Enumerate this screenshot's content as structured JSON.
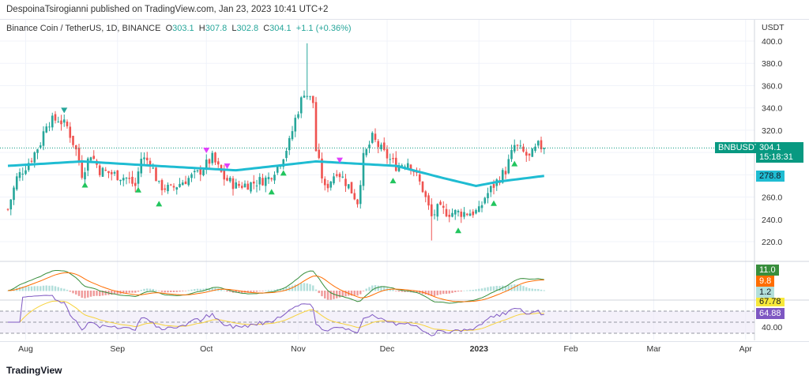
{
  "publisher": "DespoinaTsirogianni published on TradingView.com, Jan 23, 2023 10:41 UTC+2",
  "legend": {
    "symbol": "Binance Coin / TetherUS, 1D, BINANCE",
    "o_label": "O",
    "o": "303.1",
    "h_label": "H",
    "h": "307.8",
    "l_label": "L",
    "l": "302.8",
    "c_label": "C",
    "c": "304.1",
    "change": "+1.1 (+0.36%)"
  },
  "axis": {
    "currency": "USDT",
    "ticks": [
      "400.0",
      "380.0",
      "360.0",
      "340.0",
      "320.0",
      "260.0",
      "240.0",
      "220.0"
    ],
    "rsi_tick": "40.00"
  },
  "tags": {
    "symbol": "BNBUSDT",
    "price": "304.1",
    "countdown": "15:18:31",
    "ma": "278.8",
    "macd": "11.0",
    "signal": "9.8",
    "hist": "1.2",
    "rsi_ma": "67.78",
    "rsi": "64.88"
  },
  "colors": {
    "up": "#26a69a",
    "down": "#ef5350",
    "ma": "#1fbcd2",
    "macd": "#388e3c",
    "signal": "#ff6d00",
    "rsi": "#7e57c2",
    "rsi_ma": "#f7d23b"
  },
  "time_labels": [
    {
      "label": "Aug",
      "day": 6
    },
    {
      "label": "Sep",
      "day": 37
    },
    {
      "label": "Oct",
      "day": 67
    },
    {
      "label": "Nov",
      "day": 98
    },
    {
      "label": "Dec",
      "day": 128
    },
    {
      "label": "2023",
      "day": 159
    },
    {
      "label": "Feb",
      "day": 190
    },
    {
      "label": "Mar",
      "day": 218
    },
    {
      "label": "Apr",
      "day": 249
    }
  ],
  "brand": "TradingView",
  "chart_data": {
    "type": "candlestick",
    "title": "Binance Coin / TetherUS, 1D",
    "ylabel": "USDT",
    "ylim": [
      210,
      405
    ],
    "anchors": [
      [
        0,
        249
      ],
      [
        3,
        277
      ],
      [
        8,
        295
      ],
      [
        11,
        309
      ],
      [
        13,
        327
      ],
      [
        17,
        330
      ],
      [
        20,
        323
      ],
      [
        23,
        302
      ],
      [
        25,
        281
      ],
      [
        28,
        299
      ],
      [
        31,
        284
      ],
      [
        35,
        281
      ],
      [
        40,
        277
      ],
      [
        43,
        270
      ],
      [
        45,
        295
      ],
      [
        48,
        292
      ],
      [
        51,
        270
      ],
      [
        55,
        267
      ],
      [
        59,
        274
      ],
      [
        64,
        281
      ],
      [
        69,
        295
      ],
      [
        73,
        277
      ],
      [
        77,
        270
      ],
      [
        82,
        272
      ],
      [
        88,
        277
      ],
      [
        92,
        292
      ],
      [
        95,
        309
      ],
      [
        97,
        330
      ],
      [
        100,
        355
      ],
      [
        103,
        345
      ],
      [
        104,
        302
      ],
      [
        107,
        267
      ],
      [
        111,
        284
      ],
      [
        115,
        270
      ],
      [
        118,
        256
      ],
      [
        120,
        295
      ],
      [
        123,
        313
      ],
      [
        127,
        299
      ],
      [
        131,
        288
      ],
      [
        135,
        292
      ],
      [
        137,
        284
      ],
      [
        140,
        267
      ],
      [
        143,
        242
      ],
      [
        145,
        249
      ],
      [
        149,
        246
      ],
      [
        155,
        246
      ],
      [
        159,
        247
      ],
      [
        161,
        260
      ],
      [
        165,
        274
      ],
      [
        168,
        284
      ],
      [
        171,
        306
      ],
      [
        173,
        302
      ],
      [
        176,
        295
      ],
      [
        179,
        306
      ],
      [
        181,
        304
      ]
    ],
    "ma_anchors": [
      [
        0,
        288
      ],
      [
        25,
        292
      ],
      [
        50,
        288
      ],
      [
        77,
        284
      ],
      [
        104,
        292
      ],
      [
        131,
        288
      ],
      [
        147,
        277
      ],
      [
        158,
        270
      ],
      [
        166,
        274
      ],
      [
        181,
        279
      ]
    ],
    "signals": [
      {
        "day": 19,
        "dir": "down"
      },
      {
        "day": 26,
        "dir": "up"
      },
      {
        "day": 44,
        "dir": "up"
      },
      {
        "day": 51,
        "dir": "up"
      },
      {
        "day": 67,
        "dir": "down"
      },
      {
        "day": 74,
        "dir": "down"
      },
      {
        "day": 89,
        "dir": "up"
      },
      {
        "day": 93,
        "dir": "up"
      },
      {
        "day": 112,
        "dir": "down"
      },
      {
        "day": 130,
        "dir": "up"
      },
      {
        "day": 152,
        "dir": "up"
      },
      {
        "day": 164,
        "dir": "up"
      },
      {
        "day": 171,
        "dir": "up"
      }
    ]
  }
}
